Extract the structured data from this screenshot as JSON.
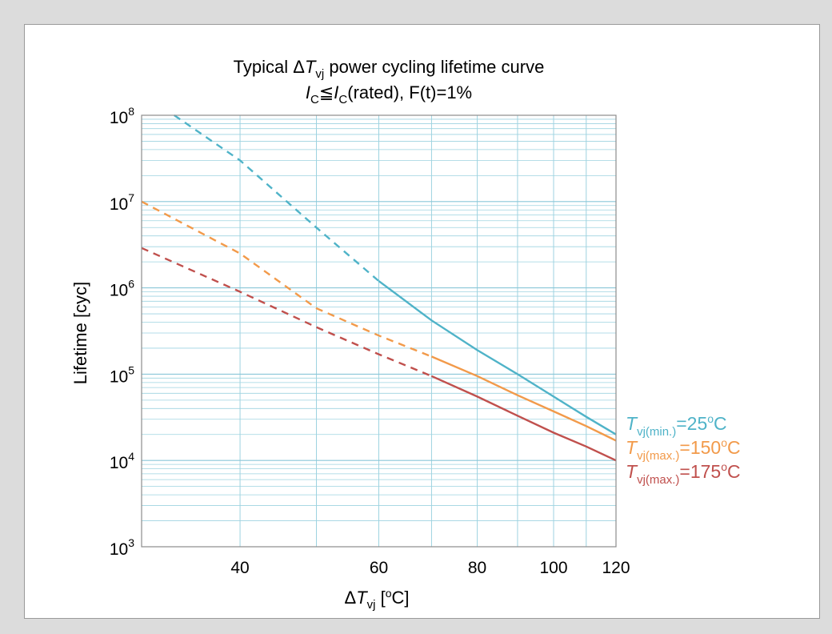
{
  "chart_data": {
    "type": "line",
    "title_line1": {
      "pre": "Typical Δ",
      "T": "T",
      "sub": "vj",
      "post": " power cycling lifetime curve"
    },
    "title_line2": {
      "I1": "I",
      "sub1": "C",
      "sym": "≦",
      "I2": "I",
      "sub2": "C",
      "post": "(rated), F(t)=1%"
    },
    "xlabel": {
      "delta": "Δ",
      "T": "T",
      "sub": "vj",
      "unit_pre": " [",
      "unit_sup": "o",
      "unit_post": "C]"
    },
    "ylabel": "Lifetime [cyc]",
    "x_scale": "log",
    "y_scale": "log",
    "xlim": [
      30,
      120
    ],
    "ylim": [
      1000,
      100000000
    ],
    "x_ticks": [
      {
        "value": 40,
        "label": "40"
      },
      {
        "value": 60,
        "label": "60"
      },
      {
        "value": 80,
        "label": "80"
      },
      {
        "value": 100,
        "label": "100"
      },
      {
        "value": 120,
        "label": "120"
      }
    ],
    "y_ticks": [
      {
        "value": 1000,
        "base": "10",
        "exp": "3"
      },
      {
        "value": 10000,
        "base": "10",
        "exp": "4"
      },
      {
        "value": 100000,
        "base": "10",
        "exp": "5"
      },
      {
        "value": 1000000,
        "base": "10",
        "exp": "6"
      },
      {
        "value": 10000000,
        "base": "10",
        "exp": "7"
      },
      {
        "value": 100000000,
        "base": "10",
        "exp": "8"
      }
    ],
    "grid": true,
    "series": [
      {
        "label": {
          "T": "T",
          "sub": "vj(min.)",
          "pre": "=25",
          "sup": "o",
          "post": "C"
        },
        "color": "#4fb3c8",
        "dashed": [
          [
            33,
            100000000
          ],
          [
            40,
            30000000
          ],
          [
            50,
            5000000
          ],
          [
            60,
            1200000
          ]
        ],
        "solid": [
          [
            60,
            1200000
          ],
          [
            70,
            420000
          ],
          [
            80,
            190000
          ],
          [
            90,
            100000
          ],
          [
            100,
            55000
          ],
          [
            110,
            32000
          ],
          [
            120,
            20000
          ]
        ]
      },
      {
        "label": {
          "T": "T",
          "sub": "vj(max.)",
          "pre": "=150",
          "sup": "o",
          "post": "C"
        },
        "color": "#f29a4a",
        "dashed": [
          [
            30,
            10000000
          ],
          [
            40,
            2500000
          ],
          [
            50,
            580000
          ],
          [
            60,
            280000
          ],
          [
            70,
            160000
          ]
        ],
        "solid": [
          [
            70,
            160000
          ],
          [
            80,
            95000
          ],
          [
            90,
            57000
          ],
          [
            100,
            37000
          ],
          [
            110,
            25000
          ],
          [
            120,
            17000
          ]
        ]
      },
      {
        "label": {
          "T": "T",
          "sub": "vj(max.)",
          "pre": "=175",
          "sup": "o",
          "post": "C"
        },
        "color": "#c0504d",
        "dashed": [
          [
            30,
            2900000
          ],
          [
            40,
            900000
          ],
          [
            50,
            350000
          ],
          [
            60,
            170000
          ],
          [
            70,
            95000
          ]
        ],
        "solid": [
          [
            70,
            95000
          ],
          [
            80,
            55000
          ],
          [
            90,
            33000
          ],
          [
            100,
            21000
          ],
          [
            110,
            14500
          ],
          [
            120,
            10000
          ]
        ]
      }
    ]
  }
}
